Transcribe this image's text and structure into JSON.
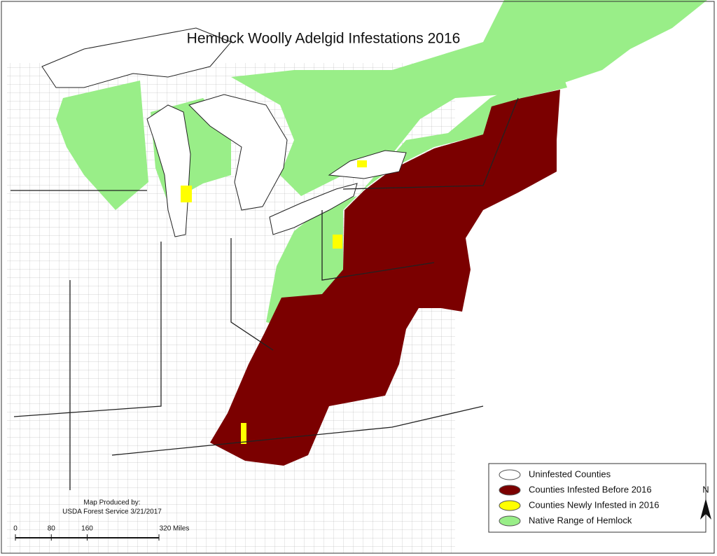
{
  "title": "Hemlock Woolly Adelgid Infestations 2016",
  "legend": {
    "items": [
      {
        "label": "Uninfested Counties",
        "color": "#ffffff"
      },
      {
        "label": "Counties Infested Before 2016",
        "color": "#7b0000"
      },
      {
        "label": "Counties Newly Infested in 2016",
        "color": "#ffff00"
      },
      {
        "label": "Native Range of Hemlock",
        "color": "#99ee88"
      }
    ]
  },
  "credit": [
    "Map Produced by:",
    "USDA Forest Service  3/21/2017"
  ],
  "scale_bar": {
    "ticks": [
      0,
      80,
      160,
      {
        "value": 320,
        "label": "320 Miles"
      }
    ]
  },
  "north_label": "N"
}
